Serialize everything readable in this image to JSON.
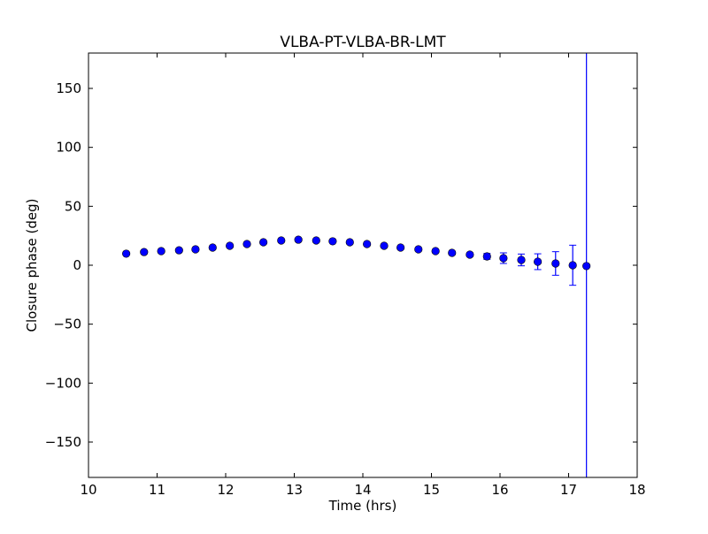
{
  "chart_data": {
    "type": "scatter",
    "title": "VLBA-PT-VLBA-BR-LMT",
    "xlabel": "Time (hrs)",
    "ylabel": "Closure phase (deg)",
    "xlim": [
      10,
      18
    ],
    "ylim": [
      -180,
      180
    ],
    "xticks": [
      10,
      11,
      12,
      13,
      14,
      15,
      16,
      17,
      18
    ],
    "yticks": [
      -150,
      -100,
      -50,
      0,
      50,
      100,
      150
    ],
    "ytick_labels": [
      "−150",
      "−100",
      "−50",
      "0",
      "50",
      "100",
      "150"
    ],
    "grid": false,
    "marker_color": "#0000ff",
    "errorbar_color": "#0000ff",
    "x": [
      10.55,
      10.81,
      11.06,
      11.32,
      11.56,
      11.81,
      12.06,
      12.31,
      12.55,
      12.81,
      13.06,
      13.32,
      13.56,
      13.81,
      14.06,
      14.31,
      14.55,
      14.81,
      15.06,
      15.3,
      15.56,
      15.81,
      16.05,
      16.31,
      16.55,
      16.81,
      17.06,
      17.26
    ],
    "y": [
      9.8,
      11.2,
      12.0,
      12.7,
      13.5,
      15.0,
      16.5,
      18.0,
      19.5,
      21.0,
      21.7,
      21.0,
      20.3,
      19.5,
      18.0,
      16.5,
      15.0,
      13.5,
      12.0,
      10.5,
      9.0,
      7.5,
      6.0,
      4.5,
      3.0,
      1.5,
      0.0,
      -0.7
    ],
    "yerr": [
      0.5,
      0.5,
      0.5,
      0.5,
      0.5,
      0.5,
      0.5,
      0.5,
      0.5,
      0.5,
      0.5,
      0.5,
      0.5,
      0.5,
      0.5,
      0.8,
      0.8,
      1,
      1,
      1.2,
      1.5,
      2.5,
      4.5,
      5,
      6.7,
      10,
      17,
      400
    ]
  }
}
